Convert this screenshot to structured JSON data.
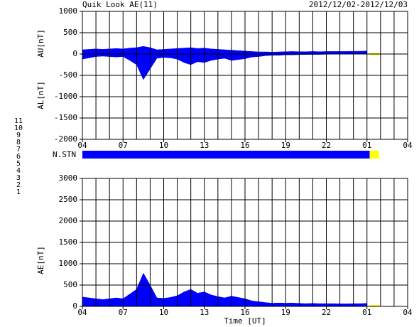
{
  "header": {
    "title": "Quik Look AE(11)",
    "date": "2012/12/02-2012/12/03"
  },
  "station_counts": [
    {
      "label": "11",
      "color": "#00e0ff"
    },
    {
      "label": "10",
      "color": "#ff00ff"
    },
    {
      "label": "9",
      "color": "#4040ff"
    },
    {
      "label": "8",
      "color": "#f0f000"
    },
    {
      "label": "7",
      "color": "#00c0a0"
    },
    {
      "label": "6",
      "color": "#ff0000"
    },
    {
      "label": "5",
      "color": "#e0e0e0"
    },
    {
      "label": "4",
      "color": "#c0c0c0"
    },
    {
      "label": "3",
      "color": "#00a0a0"
    },
    {
      "label": "2",
      "color": "#a000a0"
    },
    {
      "label": "1",
      "color": "#0000ff"
    }
  ],
  "station_strip": {
    "label": "N.STN",
    "segments": [
      {
        "start": 4,
        "end": 25.2,
        "color": "#0000ff"
      },
      {
        "start": 25.2,
        "end": 25.9,
        "color": "#ffff00"
      }
    ]
  },
  "chart_data": [
    {
      "type": "area",
      "ylabels": [
        "AU[nT]",
        "AL[nT]"
      ],
      "xlim": [
        4,
        28
      ],
      "xticks": [
        {
          "value": 4,
          "label": "04"
        },
        {
          "value": 7,
          "label": "07"
        },
        10,
        13,
        16,
        19,
        22,
        {
          "value": 25,
          "label": "01"
        },
        {
          "value": 28,
          "label": "04"
        }
      ],
      "ylim": [
        -2000,
        1000
      ],
      "yticks": [
        1000,
        500,
        0,
        -500,
        -1000,
        -1500,
        -2000
      ],
      "grid": true,
      "x": [
        4,
        4.5,
        5,
        5.5,
        6,
        6.5,
        7,
        7.5,
        8,
        8.5,
        9,
        9.5,
        10,
        10.5,
        11,
        11.5,
        12,
        12.5,
        13,
        13.5,
        14,
        14.5,
        15,
        15.5,
        16,
        16.5,
        17,
        17.5,
        18,
        18.5,
        19,
        19.5,
        20,
        20.5,
        21,
        21.5,
        22,
        22.5,
        23,
        23.5,
        24,
        24.5,
        25
      ],
      "series": [
        {
          "color": "#0000ff",
          "values": [
            100,
            110,
            120,
            110,
            120,
            130,
            120,
            140,
            150,
            180,
            150,
            100,
            110,
            120,
            130,
            140,
            150,
            130,
            140,
            120,
            110,
            100,
            90,
            80,
            70,
            60,
            50,
            50,
            45,
            50,
            55,
            60,
            55,
            55,
            60,
            55,
            60,
            60,
            60,
            60,
            65,
            65,
            70
          ]
        },
        {
          "color": "#0000ff",
          "values": [
            -120,
            -90,
            -60,
            -50,
            -60,
            -70,
            -60,
            -150,
            -250,
            -600,
            -350,
            -100,
            -80,
            -90,
            -120,
            -200,
            -250,
            -180,
            -200,
            -150,
            -120,
            -100,
            -150,
            -130,
            -110,
            -70,
            -60,
            -40,
            -30,
            -30,
            -20,
            -20,
            -15,
            -10,
            -10,
            -10,
            -5,
            -5,
            0,
            0,
            0,
            0,
            0
          ]
        },
        {
          "color": "#ffff00",
          "x": [
            25.2,
            25.9
          ],
          "values": [
            20,
            20
          ]
        },
        {
          "color": "#ffff00",
          "x": [
            25.2,
            25.9
          ],
          "values": [
            -20,
            -20
          ]
        }
      ]
    },
    {
      "type": "area",
      "ylabels": [
        "AE[nT]"
      ],
      "xlabel": "Time [UT]",
      "xlim": [
        4,
        28
      ],
      "xticks": [
        {
          "value": 4,
          "label": "04"
        },
        {
          "value": 7,
          "label": "07"
        },
        10,
        13,
        16,
        19,
        22,
        {
          "value": 25,
          "label": "01"
        },
        {
          "value": 28,
          "label": "04"
        }
      ],
      "ylim": [
        0,
        3000
      ],
      "yticks": [
        3000,
        2500,
        2000,
        1500,
        1000,
        500,
        0
      ],
      "grid": true,
      "x": [
        4,
        4.5,
        5,
        5.5,
        6,
        6.5,
        7,
        7.5,
        8,
        8.5,
        9,
        9.5,
        10,
        10.5,
        11,
        11.5,
        12,
        12.5,
        13,
        13.5,
        14,
        14.5,
        15,
        15.5,
        16,
        16.5,
        17,
        17.5,
        18,
        18.5,
        19,
        19.5,
        20,
        20.5,
        21,
        21.5,
        22,
        22.5,
        23,
        23.5,
        24,
        24.5,
        25
      ],
      "series": [
        {
          "color": "#0000ff",
          "values": [
            220,
            200,
            180,
            160,
            180,
            200,
            180,
            290,
            400,
            780,
            500,
            200,
            190,
            210,
            250,
            340,
            400,
            310,
            340,
            270,
            230,
            200,
            240,
            210,
            180,
            130,
            110,
            90,
            75,
            80,
            75,
            80,
            70,
            65,
            70,
            65,
            65,
            65,
            60,
            60,
            65,
            65,
            70
          ]
        },
        {
          "color": "#ffff00",
          "x": [
            25.2,
            25.9
          ],
          "values": [
            30,
            30
          ]
        }
      ]
    }
  ]
}
